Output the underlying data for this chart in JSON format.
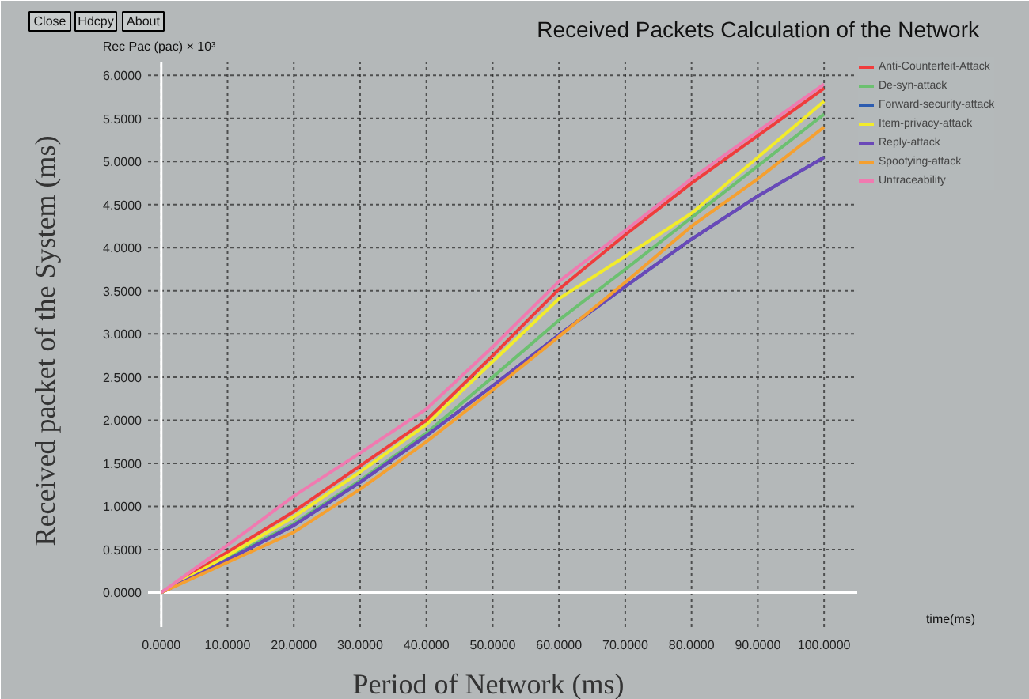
{
  "chart_data": {
    "type": "line",
    "title": "Received Packets Calculation of the Network",
    "xlabel": "Period of Network (ms)",
    "ylabel": "Received packet of the System (ms)",
    "annotations": [
      "Close",
      "Hdcpy",
      "About",
      "Rec Pac (pac) × 10³",
      "time(ms)"
    ],
    "x": [
      0,
      10,
      20,
      30,
      40,
      50,
      60,
      70,
      80,
      90,
      100
    ],
    "series": [
      {
        "name": "Anti-Counterfeit-Attack",
        "color": "#f03c3c",
        "values": [
          0,
          0.47,
          0.94,
          1.47,
          2.0,
          2.75,
          3.52,
          4.15,
          4.75,
          5.3,
          5.85
        ]
      },
      {
        "name": "De-syn-attack",
        "color": "#6cc070",
        "values": [
          0,
          0.4,
          0.8,
          1.3,
          1.85,
          2.5,
          3.16,
          3.75,
          4.35,
          4.95,
          5.55
        ]
      },
      {
        "name": "Forward-security-attack",
        "color": "#2c5cb0",
        "values": [
          0,
          0.38,
          0.78,
          1.28,
          1.82,
          2.4,
          2.99,
          3.55,
          4.1,
          4.6,
          5.05
        ]
      },
      {
        "name": "Item-privacy-attack",
        "color": "#f2ec2a",
        "values": [
          0,
          0.43,
          0.88,
          1.4,
          1.95,
          2.68,
          3.41,
          3.9,
          4.4,
          5.05,
          5.7
        ]
      },
      {
        "name": "Reply-attack",
        "color": "#6a48b8",
        "values": [
          0,
          0.38,
          0.78,
          1.28,
          1.82,
          2.4,
          2.99,
          3.55,
          4.1,
          4.6,
          5.05
        ]
      },
      {
        "name": "Spoofying-attack",
        "color": "#f5a030",
        "values": [
          0,
          0.35,
          0.7,
          1.2,
          1.75,
          2.35,
          2.97,
          3.6,
          4.25,
          4.8,
          5.4
        ]
      },
      {
        "name": "Untraceability",
        "color": "#f07ab0",
        "values": [
          0,
          0.55,
          1.12,
          1.62,
          2.13,
          2.85,
          3.61,
          4.2,
          4.8,
          5.35,
          5.9
        ]
      }
    ],
    "xlim": [
      -2,
      105
    ],
    "ylim": [
      -0.4,
      6.15
    ],
    "xticks": [
      {
        "value": 0,
        "label": "0.0000"
      },
      {
        "value": 10,
        "label": "10.0000"
      },
      {
        "value": 20,
        "label": "20.0000"
      },
      {
        "value": 30,
        "label": "30.0000"
      },
      {
        "value": 40,
        "label": "40.0000"
      },
      {
        "value": 50,
        "label": "50.0000"
      },
      {
        "value": 60,
        "label": "60.0000"
      },
      {
        "value": 70,
        "label": "70.0000"
      },
      {
        "value": 80,
        "label": "80.0000"
      },
      {
        "value": 90,
        "label": "90.0000"
      },
      {
        "value": 100,
        "label": "100.0000"
      }
    ],
    "yticks": [
      {
        "value": 0,
        "label": "0.0000"
      },
      {
        "value": 0.5,
        "label": "0.5000"
      },
      {
        "value": 1,
        "label": "1.0000"
      },
      {
        "value": 1.5,
        "label": "1.5000"
      },
      {
        "value": 2,
        "label": "2.0000"
      },
      {
        "value": 2.5,
        "label": "2.5000"
      },
      {
        "value": 3,
        "label": "3.0000"
      },
      {
        "value": 3.5,
        "label": "3.5000"
      },
      {
        "value": 4,
        "label": "4.0000"
      },
      {
        "value": 4.5,
        "label": "4.5000"
      },
      {
        "value": 5,
        "label": "5.0000"
      },
      {
        "value": 5.5,
        "label": "5.5000"
      },
      {
        "value": 6,
        "label": "6.0000"
      }
    ],
    "grid": true,
    "legend": "top right",
    "marker": "none",
    "line_style": "solid"
  }
}
